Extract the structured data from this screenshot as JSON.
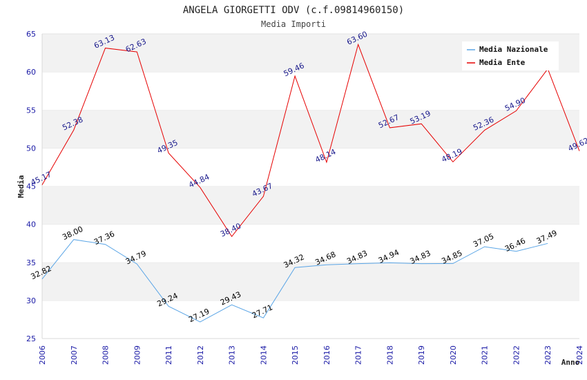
{
  "chart_data": {
    "type": "line",
    "title": "ANGELA GIORGETTI ODV (c.f.09814960150)",
    "subtitle": "Media Importi",
    "xlabel": "Anno",
    "ylabel": "Media",
    "ylim": [
      25,
      65
    ],
    "yticks": [
      "25",
      "30",
      "35",
      "40",
      "45",
      "50",
      "55",
      "60",
      "65"
    ],
    "categories": [
      "2006",
      "2007",
      "2008",
      "2009",
      "2011",
      "2012",
      "2013",
      "2014",
      "2015",
      "2016",
      "2017",
      "2018",
      "2019",
      "2020",
      "2021",
      "2022",
      "2023",
      "2024"
    ],
    "grid": true,
    "legend_position": "top-right",
    "series": [
      {
        "name": "Media Nazionale",
        "color": "#5aa5e6",
        "label_color": "#000000",
        "values": [
          32.82,
          38.0,
          37.36,
          34.79,
          29.24,
          27.19,
          29.43,
          27.71,
          34.32,
          34.68,
          34.83,
          34.94,
          34.83,
          34.85,
          37.05,
          36.46,
          37.49,
          null
        ],
        "labels": [
          "32.82",
          "38.00",
          "37.36",
          "34.79",
          "29.24",
          "27.19",
          "29.43",
          "27.71",
          "34.32",
          "34.68",
          "34.83",
          "34.94",
          "34.83",
          "34.85",
          "37.05",
          "36.46",
          "37.49",
          ""
        ]
      },
      {
        "name": "Media Ente",
        "color": "#e60000",
        "label_color": "#1a1a8c",
        "values": [
          45.17,
          52.38,
          63.13,
          62.63,
          49.35,
          44.84,
          38.4,
          43.67,
          59.46,
          48.14,
          63.6,
          52.67,
          53.19,
          48.19,
          52.36,
          54.9,
          60.4,
          49.62
        ],
        "labels": [
          "45.17",
          "52.38",
          "63.13",
          "62.63",
          "49.35",
          "44.84",
          "38.40",
          "43.67",
          "59.46",
          "48.14",
          "63.60",
          "52.67",
          "53.19",
          "48.19",
          "52.36",
          "54.90",
          "",
          "49.62"
        ]
      }
    ]
  }
}
